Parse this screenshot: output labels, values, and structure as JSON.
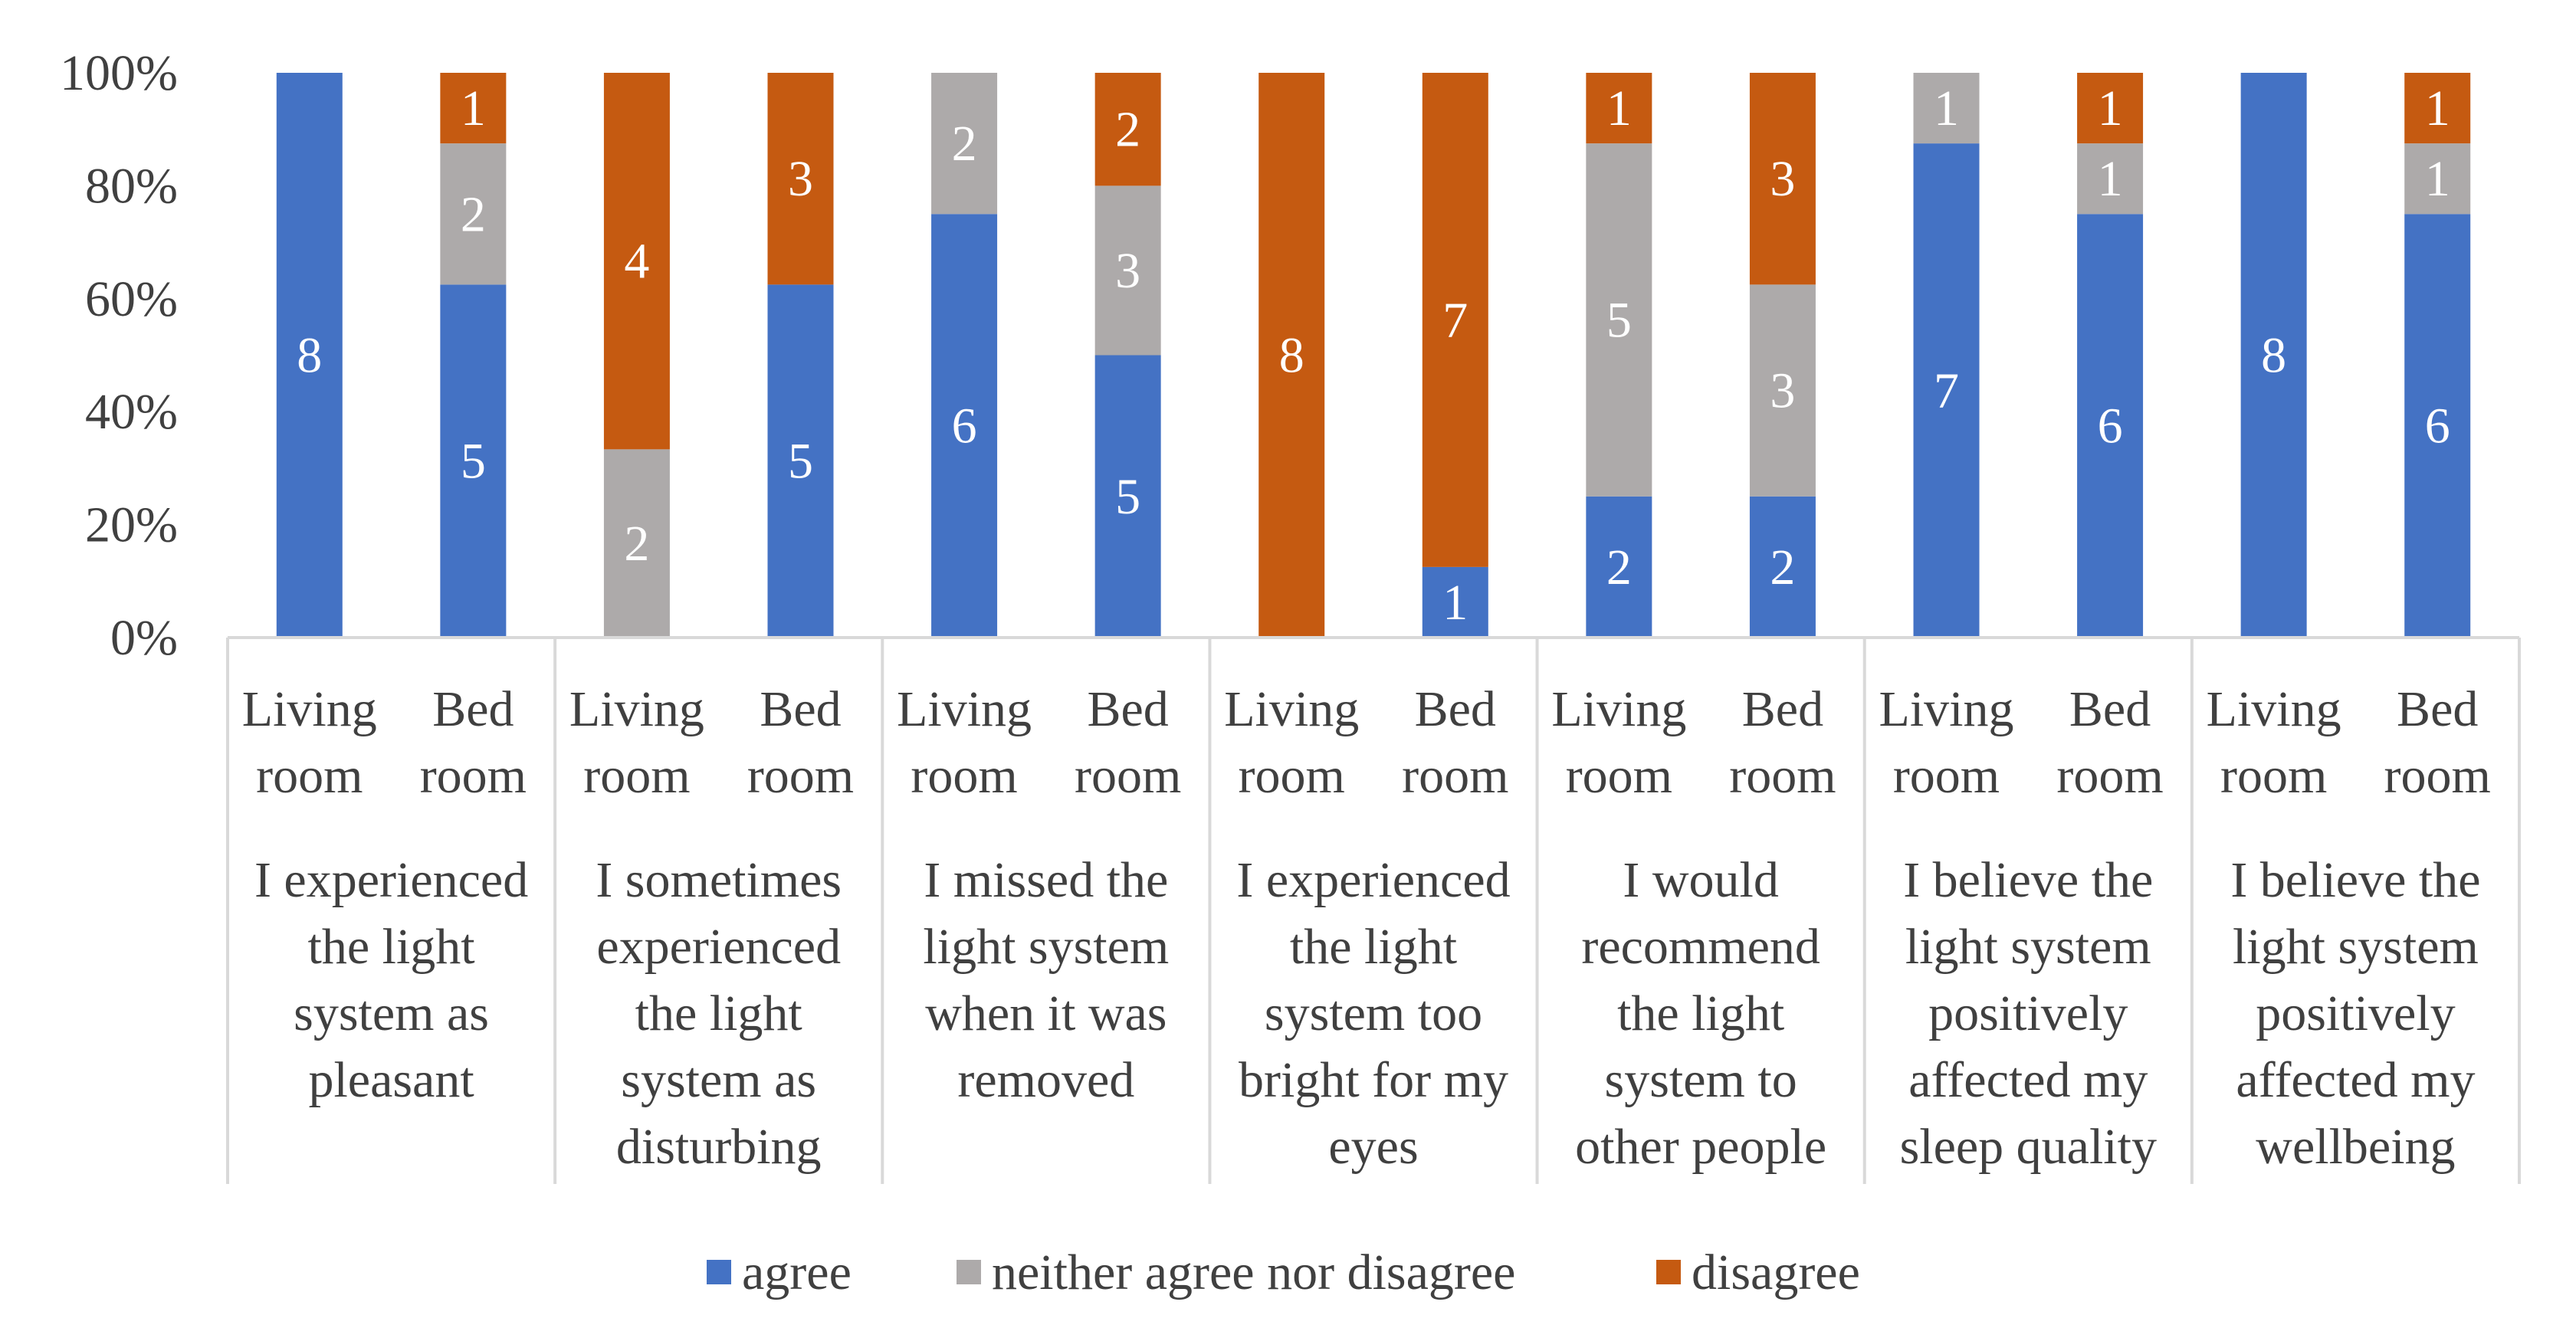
{
  "chart_data": {
    "type": "bar",
    "stacked": true,
    "percent": true,
    "y_ticks": [
      "0%",
      "20%",
      "40%",
      "60%",
      "80%",
      "100%"
    ],
    "ylim": [
      0,
      100
    ],
    "groups": [
      {
        "lines": [
          "I experienced",
          "the light",
          "system as",
          "pleasant"
        ],
        "bars": [
          {
            "room": [
              "Living",
              "room"
            ],
            "agree": 8,
            "neither": 0,
            "disagree": 0
          },
          {
            "room": [
              "Bed",
              "room"
            ],
            "agree": 5,
            "neither": 2,
            "disagree": 1
          }
        ]
      },
      {
        "lines": [
          "I sometimes",
          "experienced",
          "the light",
          "system as",
          "disturbing"
        ],
        "bars": [
          {
            "room": [
              "Living",
              "room"
            ],
            "agree": 0,
            "neither": 2,
            "disagree": 4
          },
          {
            "room": [
              "Bed",
              "room"
            ],
            "agree": 5,
            "neither": 0,
            "disagree": 3
          }
        ]
      },
      {
        "lines": [
          "I missed the",
          "light system",
          "when it was",
          "removed"
        ],
        "bars": [
          {
            "room": [
              "Living",
              "room"
            ],
            "agree": 6,
            "neither": 2,
            "disagree": 0
          },
          {
            "room": [
              "Bed",
              "room"
            ],
            "agree": 5,
            "neither": 3,
            "disagree": 2
          }
        ]
      },
      {
        "lines": [
          "I experienced",
          "the light",
          "system too",
          "bright for my",
          "eyes"
        ],
        "bars": [
          {
            "room": [
              "Living",
              "room"
            ],
            "agree": 0,
            "neither": 0,
            "disagree": 8
          },
          {
            "room": [
              "Bed",
              "room"
            ],
            "agree": 1,
            "neither": 0,
            "disagree": 7
          }
        ]
      },
      {
        "lines": [
          "I would",
          "recommend",
          "the light",
          "system to",
          "other people"
        ],
        "bars": [
          {
            "room": [
              "Living",
              "room"
            ],
            "agree": 2,
            "neither": 5,
            "disagree": 1
          },
          {
            "room": [
              "Bed",
              "room"
            ],
            "agree": 2,
            "neither": 3,
            "disagree": 3
          }
        ]
      },
      {
        "lines": [
          "I believe the",
          "light system",
          "positively",
          "affected my",
          "sleep quality"
        ],
        "bars": [
          {
            "room": [
              "Living",
              "room"
            ],
            "agree": 7,
            "neither": 1,
            "disagree": 0
          },
          {
            "room": [
              "Bed",
              "room"
            ],
            "agree": 6,
            "neither": 1,
            "disagree": 1
          }
        ]
      },
      {
        "lines": [
          "I believe the",
          "light system",
          "positively",
          "affected my",
          "wellbeing"
        ],
        "bars": [
          {
            "room": [
              "Living",
              "room"
            ],
            "agree": 8,
            "neither": 0,
            "disagree": 0
          },
          {
            "room": [
              "Bed",
              "room"
            ],
            "agree": 6,
            "neither": 1,
            "disagree": 1
          }
        ]
      }
    ],
    "series": [
      {
        "key": "agree",
        "name": "agree",
        "color": "#4472C4"
      },
      {
        "key": "neither",
        "name": "neither agree nor disagree",
        "color": "#ADAAAA"
      },
      {
        "key": "disagree",
        "name": "disagree",
        "color": "#C55A11"
      }
    ],
    "legend_position": "bottom"
  }
}
